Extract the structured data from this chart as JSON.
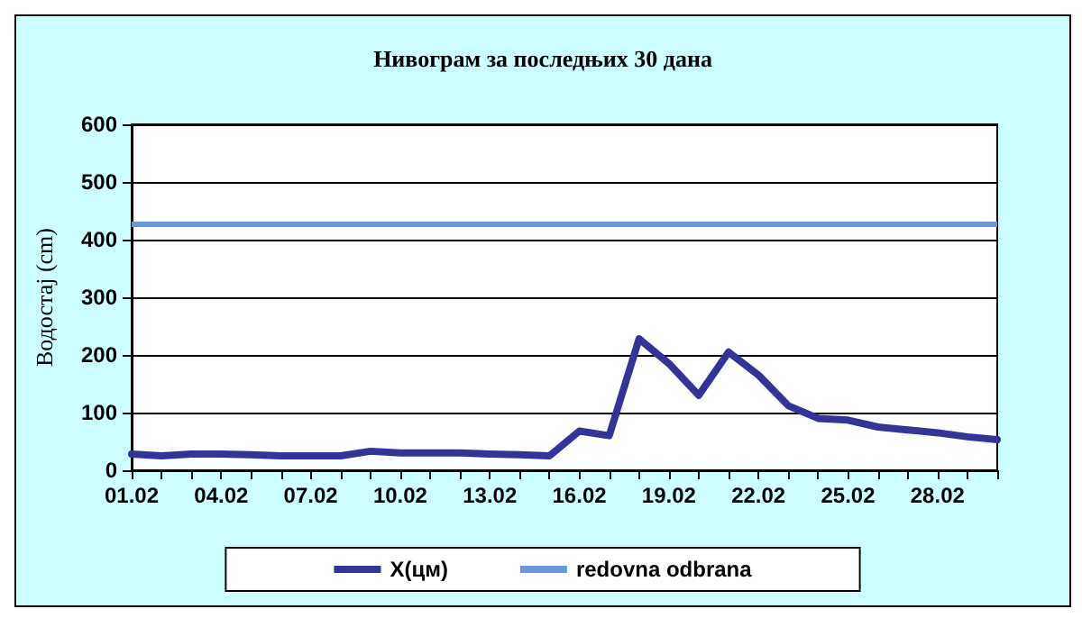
{
  "chart_data": {
    "type": "line",
    "title": "Нивограм за последњих 30 дана",
    "ylabel": "Водостај (cm)",
    "categories": [
      "01.02",
      null,
      null,
      "04.02",
      null,
      null,
      "07.02",
      null,
      null,
      "10.02",
      null,
      null,
      "13.02",
      null,
      null,
      "16.02",
      null,
      null,
      "19.02",
      null,
      null,
      "22.02",
      null,
      null,
      "25.02",
      null,
      null,
      "28.02",
      null,
      null
    ],
    "series": [
      {
        "name": "X(цм)",
        "color": "#333399",
        "values": [
          28,
          25,
          28,
          28,
          27,
          25,
          25,
          25,
          33,
          30,
          30,
          30,
          28,
          27,
          25,
          68,
          60,
          228,
          185,
          130,
          205,
          165,
          112,
          90,
          87,
          75,
          70,
          65,
          58,
          53
        ]
      }
    ],
    "ref_lines": [
      {
        "axis": "y",
        "value": 428,
        "label": "redovna odbrana",
        "color": "#6699dd"
      }
    ],
    "ylim": [
      0,
      600
    ],
    "yticks": [
      0,
      100,
      200,
      300,
      400,
      500,
      600
    ],
    "grid": "y",
    "legend": "bottom",
    "marker": "none",
    "line_style": "solid"
  }
}
